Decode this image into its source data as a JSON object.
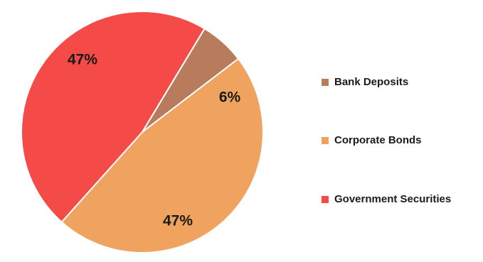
{
  "chart_data": {
    "type": "pie",
    "title": "",
    "categories": [
      "Bank Deposits",
      "Corporate Bonds",
      "Government Securities"
    ],
    "values": [
      6,
      47,
      47
    ],
    "labels": [
      "6%",
      "47%",
      "47%"
    ],
    "colors": [
      "#b87b5c",
      "#f0a35e",
      "#f44a48"
    ],
    "start_angle_deg": -59,
    "legend_position": "right"
  }
}
